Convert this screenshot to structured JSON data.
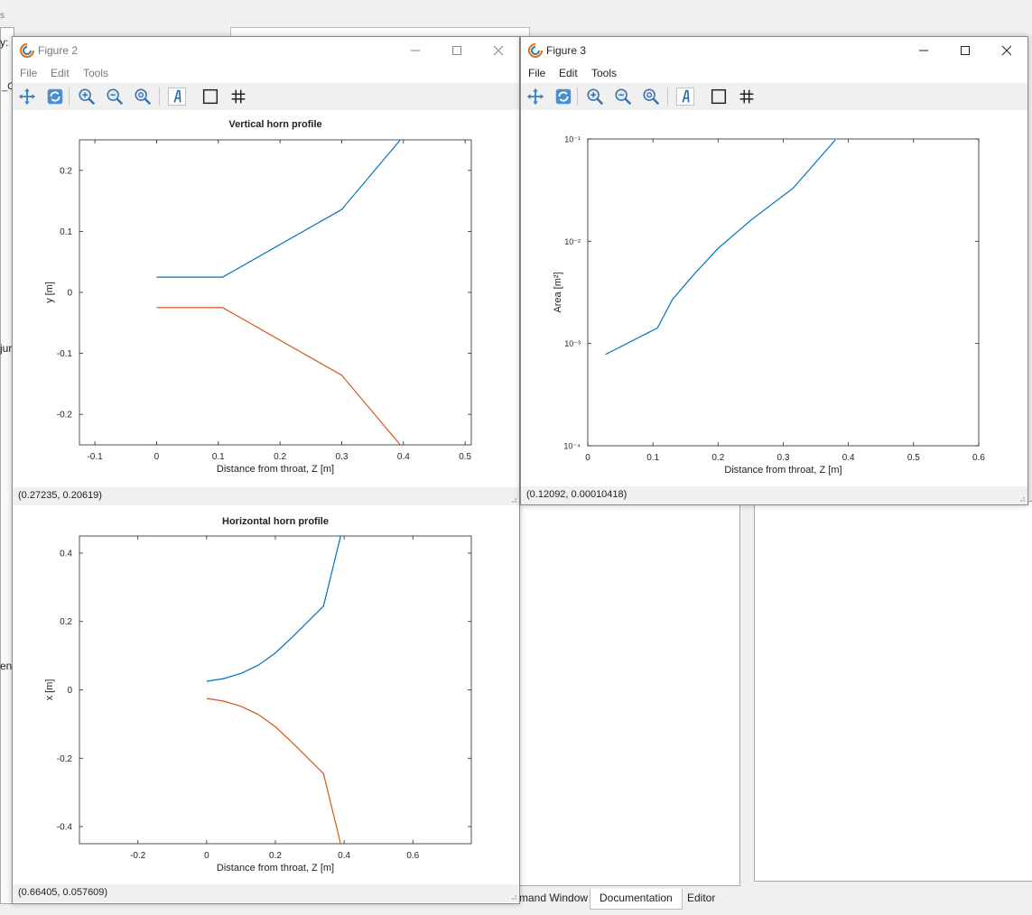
{
  "background": {
    "left_fragments": [
      "s",
      "y:",
      "_C",
      "jur",
      "en"
    ],
    "bottom_tabs": [
      "mand Window",
      "Documentation",
      "Editor"
    ],
    "active_tab_index": 1
  },
  "colors": {
    "series1": "#0072BD",
    "series2": "#D95319",
    "toolbar_bg": "#f0f0f0"
  },
  "figure2": {
    "title": "Figure 2",
    "menus": [
      "File",
      "Edit",
      "Tools"
    ],
    "toolbar_icons": [
      "pan-icon",
      "rotate-icon",
      "zoom-in-icon",
      "zoom-out-icon",
      "zoom-reset-icon",
      "text-icon",
      "box-icon",
      "grid-icon"
    ],
    "status_top": "(0.27235, 0.20619)",
    "status_bottom": "(0.66405, 0.057609)"
  },
  "figure3": {
    "title": "Figure 3",
    "menus": [
      "File",
      "Edit",
      "Tools"
    ],
    "toolbar_icons": [
      "pan-icon",
      "rotate-icon",
      "zoom-in-icon",
      "zoom-out-icon",
      "zoom-reset-icon",
      "text-icon",
      "box-icon",
      "grid-icon"
    ],
    "status": "(0.12092, 0.00010418)"
  },
  "chart_data": [
    {
      "type": "line",
      "title": "Vertical horn profile",
      "xlabel": "Distance from throat, Z [m]",
      "ylabel": "y [m]",
      "xlim": [
        -0.125,
        0.51
      ],
      "ylim": [
        -0.25,
        0.25
      ],
      "xticks": [
        "-0.1",
        "0",
        "0.1",
        "0.2",
        "0.3",
        "0.4",
        "0.5"
      ],
      "xtick_values": [
        -0.1,
        0,
        0.1,
        0.2,
        0.3,
        0.4,
        0.5
      ],
      "yticks": [
        "-0.2",
        "-0.1",
        "0",
        "0.1",
        "0.2"
      ],
      "ytick_values": [
        -0.2,
        -0.1,
        0,
        0.1,
        0.2
      ],
      "grid": false,
      "series": [
        {
          "color": "#0072BD",
          "x": [
            0,
            0.107,
            0.3,
            0.395
          ],
          "y": [
            0.025,
            0.025,
            0.136,
            0.25
          ]
        },
        {
          "color": "#D95319",
          "x": [
            0,
            0.107,
            0.3,
            0.395
          ],
          "y": [
            -0.025,
            -0.025,
            -0.136,
            -0.25
          ]
        }
      ]
    },
    {
      "type": "line",
      "title": "Horizontal horn profile",
      "xlabel": "Distance from throat, Z [m]",
      "ylabel": "x [m]",
      "xlim": [
        -0.37,
        0.77
      ],
      "ylim": [
        -0.45,
        0.45
      ],
      "xticks": [
        "-0.2",
        "0",
        "0.2",
        "0.4",
        "0.6"
      ],
      "xtick_values": [
        -0.2,
        0,
        0.2,
        0.4,
        0.6
      ],
      "yticks": [
        "-0.4",
        "-0.2",
        "0",
        "0.2",
        "0.4"
      ],
      "ytick_values": [
        -0.4,
        -0.2,
        0,
        0.2,
        0.4
      ],
      "grid": false,
      "series": [
        {
          "color": "#0072BD",
          "x": [
            0,
            0.05,
            0.1,
            0.15,
            0.2,
            0.25,
            0.3,
            0.34,
            0.39
          ],
          "y": [
            0.025,
            0.033,
            0.048,
            0.072,
            0.108,
            0.155,
            0.205,
            0.245,
            0.45
          ]
        },
        {
          "color": "#D95319",
          "x": [
            0,
            0.05,
            0.1,
            0.15,
            0.2,
            0.25,
            0.3,
            0.34,
            0.39
          ],
          "y": [
            -0.025,
            -0.033,
            -0.048,
            -0.072,
            -0.108,
            -0.155,
            -0.205,
            -0.245,
            -0.45
          ]
        }
      ]
    },
    {
      "type": "line",
      "title": "",
      "xlabel": "Distance from throat, Z [m]",
      "ylabel": "Area [m²]",
      "xlim": [
        0,
        0.6
      ],
      "ylim": [
        0.0001,
        0.1
      ],
      "yscale": "log",
      "xticks": [
        "0",
        "0.1",
        "0.2",
        "0.3",
        "0.4",
        "0.5",
        "0.6"
      ],
      "xtick_values": [
        0,
        0.1,
        0.2,
        0.3,
        0.4,
        0.5,
        0.6
      ],
      "yticks": [
        "10⁻⁴",
        "10⁻³",
        "10⁻²",
        "10⁻¹"
      ],
      "ytick_values": [
        0.0001,
        0.001,
        0.01,
        0.1
      ],
      "grid": false,
      "series": [
        {
          "color": "#0072BD",
          "x": [
            0.027,
            0.107,
            0.13,
            0.165,
            0.2,
            0.25,
            0.315,
            0.38
          ],
          "y": [
            0.00078,
            0.00142,
            0.0027,
            0.0049,
            0.0085,
            0.016,
            0.033,
            0.098
          ]
        }
      ]
    }
  ]
}
